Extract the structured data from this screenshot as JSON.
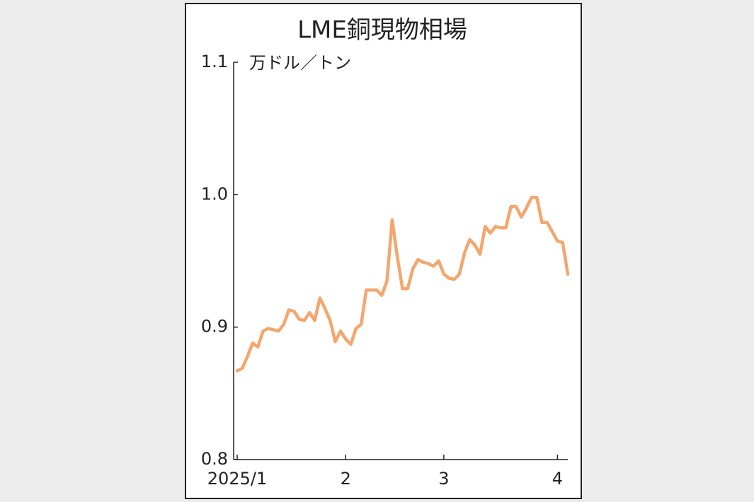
{
  "chart_data": {
    "type": "line",
    "title": "LME銅現物相場",
    "y_label": "万ドル／トン",
    "categories": [
      "2025/1",
      null,
      null,
      null,
      null,
      null,
      null,
      null,
      null,
      null,
      null,
      null,
      null,
      null,
      null,
      null,
      null,
      null,
      null,
      null,
      null,
      "2",
      null,
      null,
      null,
      null,
      null,
      null,
      null,
      null,
      null,
      null,
      null,
      null,
      null,
      null,
      null,
      null,
      null,
      null,
      "3",
      null,
      null,
      null,
      null,
      null,
      null,
      null,
      null,
      null,
      null,
      null,
      null,
      null,
      null,
      null,
      null,
      null,
      null,
      null,
      null,
      null,
      "4",
      null,
      null
    ],
    "series": [
      {
        "name": "LME銅現物相場",
        "color": "#f4a66e",
        "values": [
          0.867,
          0.869,
          0.878,
          0.888,
          0.885,
          0.897,
          0.899,
          0.898,
          0.897,
          0.902,
          0.913,
          0.912,
          0.906,
          0.905,
          0.911,
          0.905,
          0.922,
          0.914,
          0.905,
          0.889,
          0.897,
          0.891,
          0.887,
          0.899,
          0.902,
          0.928,
          0.928,
          0.928,
          0.924,
          0.935,
          0.981,
          0.953,
          0.929,
          0.929,
          0.944,
          0.951,
          0.949,
          0.948,
          0.946,
          0.95,
          0.94,
          0.937,
          0.936,
          0.94,
          0.956,
          0.966,
          0.962,
          0.955,
          0.976,
          0.971,
          0.976,
          0.975,
          0.975,
          0.991,
          0.991,
          0.983,
          0.99,
          0.998,
          0.998,
          0.979,
          0.979,
          0.972,
          0.965,
          0.964,
          0.94
        ]
      }
    ],
    "ylim": [
      0.8,
      1.1
    ],
    "yticks": [
      0.8,
      0.9,
      {
        "value": 1,
        "label": "1.0"
      },
      1.1
    ]
  }
}
